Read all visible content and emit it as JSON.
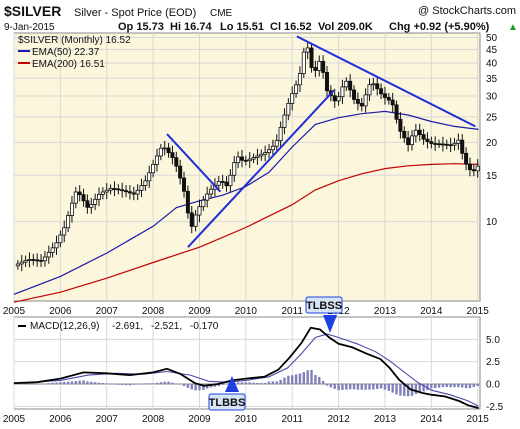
{
  "header": {
    "ticker": "$SILVER",
    "name": "Silver - Spot Price (EOD)",
    "exchange": "CME",
    "watermark": "@ StockCharts.com",
    "date": "9-Jan-2015",
    "open": "Op 15.73",
    "high": "Hi 16.74",
    "low": "Lo 15.51",
    "close": "Cl 16.52",
    "volume": "Vol 209.0K",
    "change": "Chg +0.92 (+5.90%)",
    "change_arrow": "▲"
  },
  "legend": {
    "main": "$SILVER (Monthly) 16.52",
    "ema50": "EMA(50) 22.37",
    "ema200": "EMA(200) 16.51"
  },
  "macd_labels": {
    "title": "MACD(12,26,9)",
    "macd": "-2.691,",
    "signal": "-2.521,",
    "hist": "-0.170"
  },
  "annotations": {
    "tlbss": "TLBSS",
    "tlbbs": "TLBBS"
  },
  "colors": {
    "price_panel_bg": "#fbf6dc",
    "grid": "#d8d8d8",
    "price": "#111111",
    "ema50": "#1a1aa8",
    "ema200": "#c00000",
    "trendline": "#1f2fd6",
    "macd_line": "#000000",
    "signal_line": "#4a4ab0",
    "histogram": "#8080b8",
    "arrow": "#1e40e0",
    "callout_bg": "#d6e4f6",
    "zero_line": "#888888"
  },
  "chart_data": [
    {
      "type": "candlestick",
      "title": "$SILVER (Monthly)",
      "y_scale": "log",
      "ylim": [
        5,
        52
      ],
      "y_ticks": [
        10,
        15,
        20,
        25,
        30,
        35,
        40,
        45,
        50
      ],
      "x_ticks": [
        "2005",
        "2006",
        "2007",
        "2008",
        "2009",
        "2010",
        "2011",
        "2012",
        "2013",
        "2014",
        "2015"
      ],
      "x_range": [
        2005.0,
        2015.05
      ],
      "series": [
        {
          "name": "$SILVER (Monthly)",
          "kind": "price",
          "points": [
            [
              2005.0,
              6.8
            ],
            [
              2005.3,
              7.2
            ],
            [
              2005.6,
              7.1
            ],
            [
              2005.9,
              8.2
            ],
            [
              2006.1,
              9.6
            ],
            [
              2006.35,
              13.2
            ],
            [
              2006.6,
              11.2
            ],
            [
              2006.85,
              12.8
            ],
            [
              2007.1,
              13.4
            ],
            [
              2007.35,
              13.1
            ],
            [
              2007.6,
              12.7
            ],
            [
              2007.85,
              14.4
            ],
            [
              2008.0,
              16.5
            ],
            [
              2008.2,
              19.5
            ],
            [
              2008.45,
              17.2
            ],
            [
              2008.7,
              12.4
            ],
            [
              2008.8,
              9.2
            ],
            [
              2008.95,
              11.0
            ],
            [
              2009.2,
              13.0
            ],
            [
              2009.45,
              14.4
            ],
            [
              2009.6,
              13.6
            ],
            [
              2009.8,
              17.8
            ],
            [
              2009.95,
              16.9
            ],
            [
              2010.2,
              17.6
            ],
            [
              2010.45,
              18.4
            ],
            [
              2010.65,
              19.8
            ],
            [
              2010.8,
              24.3
            ],
            [
              2010.95,
              29.2
            ],
            [
              2011.15,
              35.0
            ],
            [
              2011.3,
              48.5
            ],
            [
              2011.45,
              35.6
            ],
            [
              2011.6,
              41.2
            ],
            [
              2011.75,
              31.4
            ],
            [
              2011.95,
              28.2
            ],
            [
              2012.15,
              34.6
            ],
            [
              2012.35,
              28.6
            ],
            [
              2012.5,
              27.5
            ],
            [
              2012.7,
              34.2
            ],
            [
              2012.95,
              30.0
            ],
            [
              2013.15,
              28.4
            ],
            [
              2013.3,
              22.5
            ],
            [
              2013.5,
              19.6
            ],
            [
              2013.65,
              22.4
            ],
            [
              2013.85,
              20.4
            ],
            [
              2014.0,
              19.8
            ],
            [
              2014.2,
              19.7
            ],
            [
              2014.45,
              19.5
            ],
            [
              2014.6,
              20.5
            ],
            [
              2014.7,
              17.0
            ],
            [
              2014.85,
              15.6
            ],
            [
              2014.95,
              15.6
            ],
            [
              2015.02,
              16.5
            ]
          ]
        },
        {
          "name": "EMA(50)",
          "kind": "ema50",
          "points": [
            [
              2005.0,
              5.3
            ],
            [
              2006.0,
              6.2
            ],
            [
              2007.0,
              7.6
            ],
            [
              2008.0,
              9.6
            ],
            [
              2008.5,
              11.3
            ],
            [
              2009.0,
              12.0
            ],
            [
              2009.5,
              12.6
            ],
            [
              2010.0,
              13.6
            ],
            [
              2010.5,
              15.4
            ],
            [
              2011.0,
              19.2
            ],
            [
              2011.5,
              23.4
            ],
            [
              2012.0,
              24.8
            ],
            [
              2012.5,
              25.7
            ],
            [
              2013.0,
              26.2
            ],
            [
              2013.5,
              25.4
            ],
            [
              2014.0,
              24.0
            ],
            [
              2014.5,
              23.0
            ],
            [
              2015.02,
              22.4
            ]
          ]
        },
        {
          "name": "EMA(200)",
          "kind": "ema200",
          "points": [
            [
              2005.0,
              4.95
            ],
            [
              2006.0,
              5.4
            ],
            [
              2007.0,
              6.1
            ],
            [
              2008.0,
              7.0
            ],
            [
              2009.0,
              8.0
            ],
            [
              2010.0,
              9.5
            ],
            [
              2011.0,
              11.6
            ],
            [
              2011.5,
              13.2
            ],
            [
              2012.0,
              14.3
            ],
            [
              2012.5,
              15.2
            ],
            [
              2013.0,
              15.9
            ],
            [
              2013.5,
              16.3
            ],
            [
              2014.0,
              16.5
            ],
            [
              2014.5,
              16.6
            ],
            [
              2015.02,
              16.5
            ]
          ]
        }
      ],
      "trendlines": [
        {
          "from": [
            2008.3,
            21.5
          ],
          "to": [
            2009.45,
            13.0
          ]
        },
        {
          "from": [
            2008.75,
            8.0
          ],
          "to": [
            2011.9,
            31.5
          ]
        },
        {
          "from": [
            2011.1,
            50.5
          ],
          "to": [
            2014.95,
            23.0
          ]
        }
      ]
    },
    {
      "type": "line",
      "title": "MACD(12,26,9)",
      "ylim": [
        -2.8,
        7.5
      ],
      "y_ticks": [
        -2.5,
        0.0,
        2.5,
        5.0
      ],
      "x_ticks": [
        "2005",
        "2006",
        "2007",
        "2008",
        "2009",
        "2010",
        "2011",
        "2012",
        "2013",
        "2014",
        "2015"
      ],
      "x_range": [
        2005.0,
        2015.05
      ],
      "series": [
        {
          "name": "MACD",
          "kind": "macd",
          "points": [
            [
              2005.0,
              0.1
            ],
            [
              2005.5,
              0.2
            ],
            [
              2006.0,
              0.6
            ],
            [
              2006.5,
              1.3
            ],
            [
              2007.0,
              1.2
            ],
            [
              2007.5,
              1.0
            ],
            [
              2008.0,
              1.3
            ],
            [
              2008.3,
              1.7
            ],
            [
              2008.6,
              1.1
            ],
            [
              2008.9,
              0.1
            ],
            [
              2009.1,
              -0.2
            ],
            [
              2009.4,
              0.0
            ],
            [
              2009.7,
              0.4
            ],
            [
              2010.0,
              0.6
            ],
            [
              2010.4,
              0.8
            ],
            [
              2010.7,
              1.6
            ],
            [
              2010.95,
              3.0
            ],
            [
              2011.2,
              4.6
            ],
            [
              2011.4,
              6.3
            ],
            [
              2011.6,
              6.1
            ],
            [
              2011.8,
              5.2
            ],
            [
              2012.0,
              4.5
            ],
            [
              2012.3,
              4.1
            ],
            [
              2012.6,
              3.4
            ],
            [
              2012.9,
              2.8
            ],
            [
              2013.1,
              1.8
            ],
            [
              2013.3,
              0.5
            ],
            [
              2013.55,
              -0.6
            ],
            [
              2013.8,
              -1.0
            ],
            [
              2014.0,
              -1.2
            ],
            [
              2014.3,
              -1.4
            ],
            [
              2014.6,
              -1.9
            ],
            [
              2014.8,
              -2.4
            ],
            [
              2015.02,
              -2.7
            ]
          ]
        },
        {
          "name": "Signal",
          "kind": "signal",
          "points": [
            [
              2005.0,
              0.05
            ],
            [
              2006.0,
              0.4
            ],
            [
              2006.6,
              1.0
            ],
            [
              2007.2,
              1.2
            ],
            [
              2007.8,
              1.1
            ],
            [
              2008.3,
              1.4
            ],
            [
              2008.8,
              1.0
            ],
            [
              2009.2,
              0.3
            ],
            [
              2009.6,
              0.2
            ],
            [
              2010.0,
              0.4
            ],
            [
              2010.5,
              0.8
            ],
            [
              2010.9,
              1.8
            ],
            [
              2011.2,
              3.4
            ],
            [
              2011.5,
              5.2
            ],
            [
              2011.75,
              5.6
            ],
            [
              2012.0,
              5.2
            ],
            [
              2012.4,
              4.5
            ],
            [
              2012.8,
              3.6
            ],
            [
              2013.1,
              2.6
            ],
            [
              2013.4,
              1.4
            ],
            [
              2013.7,
              0.2
            ],
            [
              2014.0,
              -0.7
            ],
            [
              2014.4,
              -1.2
            ],
            [
              2014.8,
              -1.9
            ],
            [
              2015.02,
              -2.5
            ]
          ]
        }
      ]
    }
  ]
}
